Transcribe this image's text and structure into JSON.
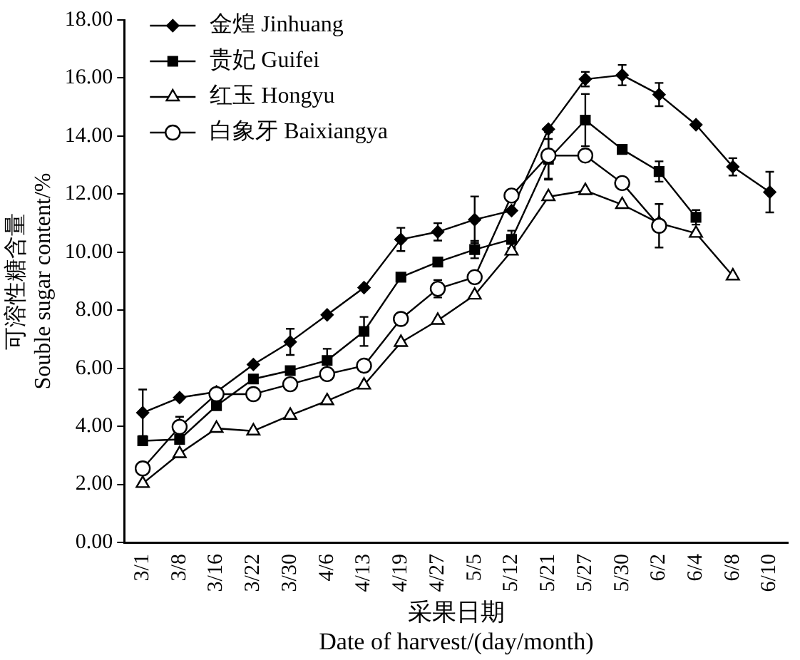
{
  "chart_data": {
    "type": "line",
    "xlabel": "采果日期\nDate of harvest/(day/month)",
    "ylabel": "可溶性糖含量\nSouble sugar content/%",
    "categories": [
      "3/1",
      "3/8",
      "3/16",
      "3/22",
      "3/30",
      "4/6",
      "4/13",
      "4/19",
      "4/27",
      "5/5",
      "5/12",
      "5/21",
      "5/27",
      "5/30",
      "6/2",
      "6/4",
      "6/8",
      "6/10"
    ],
    "ylim": [
      0,
      18
    ],
    "yticks": [
      {
        "value": 0,
        "label": "0.00"
      },
      {
        "value": 2,
        "label": "2.00"
      },
      {
        "value": 4,
        "label": "4.00"
      },
      {
        "value": 6,
        "label": "6.00"
      },
      {
        "value": 8,
        "label": "8.00"
      },
      {
        "value": 10,
        "label": "10.00"
      },
      {
        "value": 12,
        "label": "12.00"
      },
      {
        "value": 14,
        "label": "14.00"
      },
      {
        "value": 16,
        "label": "16.00"
      },
      {
        "value": 18,
        "label": "18.00"
      }
    ],
    "grid": false,
    "legend": "top left",
    "line_style": "solid",
    "series": [
      {
        "name": "金煌 Jinhuang",
        "color": "#000000",
        "marker": "diamond",
        "values": [
          4.47,
          4.99,
          5.19,
          6.13,
          6.91,
          7.84,
          8.78,
          10.44,
          10.7,
          11.12,
          11.43,
          14.24,
          15.96,
          16.1,
          15.43,
          14.39,
          12.94,
          12.07
        ],
        "errors": [
          0.8,
          null,
          null,
          null,
          0.45,
          null,
          null,
          0.4,
          0.3,
          0.8,
          null,
          null,
          0.25,
          0.35,
          0.4,
          null,
          0.3,
          0.7
        ]
      },
      {
        "name": "贵妃 Guifei",
        "color": "#000000",
        "marker": "square",
        "values": [
          3.5,
          3.55,
          4.71,
          5.63,
          5.92,
          6.27,
          7.27,
          9.14,
          9.66,
          10.09,
          10.44,
          13.2,
          14.55,
          13.54,
          12.78,
          11.2,
          null,
          null
        ],
        "errors": [
          null,
          null,
          null,
          null,
          null,
          0.4,
          0.5,
          null,
          null,
          0.3,
          0.3,
          0.7,
          0.9,
          null,
          0.35,
          0.25,
          null,
          null
        ]
      },
      {
        "name": "红玉 Hongyu",
        "color": "#000000",
        "marker": "triangle",
        "values": [
          2.03,
          3.06,
          3.93,
          3.84,
          4.38,
          4.88,
          5.42,
          6.89,
          7.65,
          8.52,
          10.04,
          11.91,
          12.12,
          11.64,
          11.0,
          10.65,
          9.18,
          null
        ]
      },
      {
        "name": "白象牙 Baixiangya",
        "color": "#000000",
        "marker": "circle",
        "values": [
          2.55,
          3.98,
          5.11,
          5.11,
          5.45,
          5.8,
          6.09,
          7.7,
          8.74,
          9.14,
          11.95,
          13.33,
          13.33,
          12.38,
          10.91,
          null,
          null,
          null
        ],
        "errors": [
          null,
          0.35,
          null,
          null,
          null,
          null,
          null,
          null,
          0.3,
          null,
          null,
          0.8,
          null,
          null,
          0.75,
          null,
          null,
          null
        ]
      }
    ]
  }
}
